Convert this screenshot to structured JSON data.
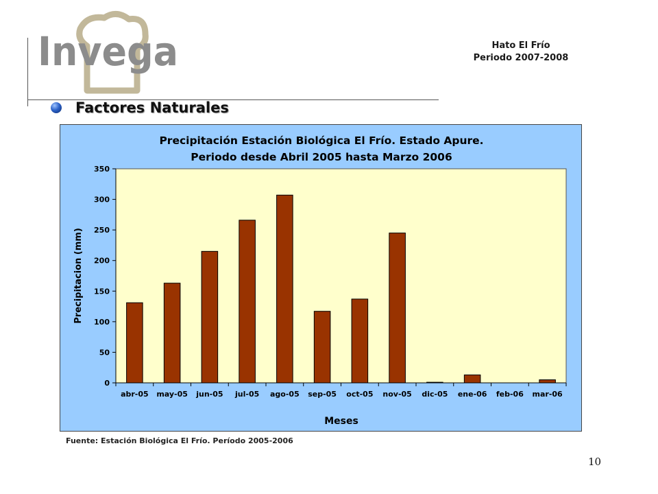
{
  "logo": {
    "text": "Invega",
    "color": "#8c8c8c",
    "icon_color": "#c2b89a"
  },
  "header": {
    "line1": "Hato El Frío",
    "line2": "Periodo 2007-2008"
  },
  "section": {
    "title": "Factores Naturales"
  },
  "source": "Fuente: Estación Biológica El Frío. Período 2005-2006",
  "page_number": "10",
  "chart_data": {
    "type": "bar",
    "title_line1": "Precipitación Estación Biológica El Frío. Estado Apure.",
    "title_line2": "Periodo desde Abril 2005 hasta Marzo 2006",
    "xlabel": "Meses",
    "ylabel": "Precipitacion (mm)",
    "ylim": [
      0,
      350
    ],
    "yticks": [
      0,
      50,
      100,
      150,
      200,
      250,
      300,
      350
    ],
    "categories": [
      "abr-05",
      "may-05",
      "jun-05",
      "jul-05",
      "ago-05",
      "sep-05",
      "oct-05",
      "nov-05",
      "dic-05",
      "ene-06",
      "feb-06",
      "mar-06"
    ],
    "values": [
      131,
      163,
      215,
      266,
      307,
      117,
      137,
      245,
      1,
      13,
      0,
      5
    ],
    "bar_color": "#993300",
    "plot_bg": "#ffffcc",
    "chart_bg": "#99ccff",
    "grid": false,
    "legend": "none"
  }
}
